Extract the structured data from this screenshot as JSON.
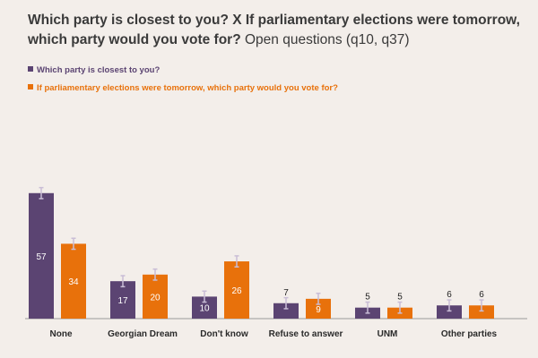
{
  "chart_data": {
    "type": "bar",
    "title_bold": "Which party is closest to you? X If parliamentary elections were tomorrow, which party would you vote for?",
    "title_normal": "Open questions (q10, q37)",
    "categories": [
      "None",
      "Georgian Dream",
      "Don't know",
      "Refuse to answer",
      "UNM",
      "Other parties"
    ],
    "series": [
      {
        "name": "Which party is closest to you?",
        "color": "#5b4472",
        "values": [
          57,
          17,
          10,
          7,
          5,
          6
        ]
      },
      {
        "name": "If parliamentary elections were tomorrow, which party would you vote for?",
        "color": "#e8710b",
        "values": [
          34,
          20,
          26,
          9,
          5,
          6
        ]
      }
    ],
    "error_margin": 2.5,
    "ylim": [
      0,
      60
    ],
    "legend_position": "top-left",
    "xlabel": "",
    "ylabel": ""
  }
}
